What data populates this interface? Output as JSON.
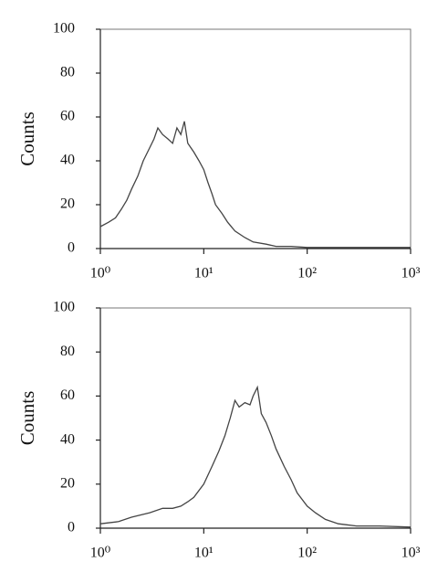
{
  "chart_data": [
    {
      "type": "line",
      "y_label": "Counts",
      "log_x": true,
      "color": "#444444",
      "x": [
        1,
        1.2,
        1.4,
        1.6,
        1.8,
        2,
        2.3,
        2.6,
        3,
        3.3,
        3.6,
        4,
        4.5,
        5,
        5.5,
        6,
        6.5,
        7,
        8,
        9,
        10,
        11,
        12,
        13,
        15,
        17,
        20,
        25,
        30,
        40,
        50,
        70,
        100,
        200,
        400,
        1000
      ],
      "values": [
        10,
        12,
        14,
        18,
        22,
        27,
        33,
        40,
        46,
        50,
        55,
        52,
        50,
        48,
        55,
        52,
        58,
        48,
        44,
        40,
        36,
        30,
        25,
        20,
        16,
        12,
        8,
        5,
        3,
        2,
        1,
        1,
        0.5,
        0.5,
        0.5,
        0.5
      ],
      "xlim": [
        1,
        1000
      ],
      "ylim": [
        0,
        100
      ],
      "yticks": [
        0,
        20,
        40,
        60,
        80,
        100
      ],
      "xticks": [
        {
          "value": 1,
          "label": "10⁰"
        },
        {
          "value": 10,
          "label": "10¹"
        },
        {
          "value": 100,
          "label": "10²"
        },
        {
          "value": 1000,
          "label": "10³"
        }
      ]
    },
    {
      "type": "line",
      "y_label": "Counts",
      "log_x": true,
      "color": "#444444",
      "x": [
        1,
        1.5,
        2,
        3,
        4,
        5,
        6,
        7,
        8,
        10,
        12,
        14,
        16,
        18,
        20,
        22,
        25,
        28,
        30,
        33,
        36,
        40,
        45,
        50,
        60,
        70,
        80,
        100,
        120,
        150,
        200,
        300,
        500,
        1000
      ],
      "values": [
        2,
        3,
        5,
        7,
        9,
        9,
        10,
        12,
        14,
        20,
        28,
        35,
        42,
        50,
        58,
        55,
        57,
        56,
        60,
        64,
        52,
        48,
        42,
        36,
        28,
        22,
        16,
        10,
        7,
        4,
        2,
        1,
        1,
        0.5
      ],
      "xlim": [
        1,
        1000
      ],
      "ylim": [
        0,
        100
      ],
      "yticks": [
        0,
        20,
        40,
        60,
        80,
        100
      ],
      "xticks": [
        {
          "value": 1,
          "label": "10⁰"
        },
        {
          "value": 10,
          "label": "10¹"
        },
        {
          "value": 100,
          "label": "10²"
        },
        {
          "value": 1000,
          "label": "10³"
        }
      ]
    }
  ]
}
